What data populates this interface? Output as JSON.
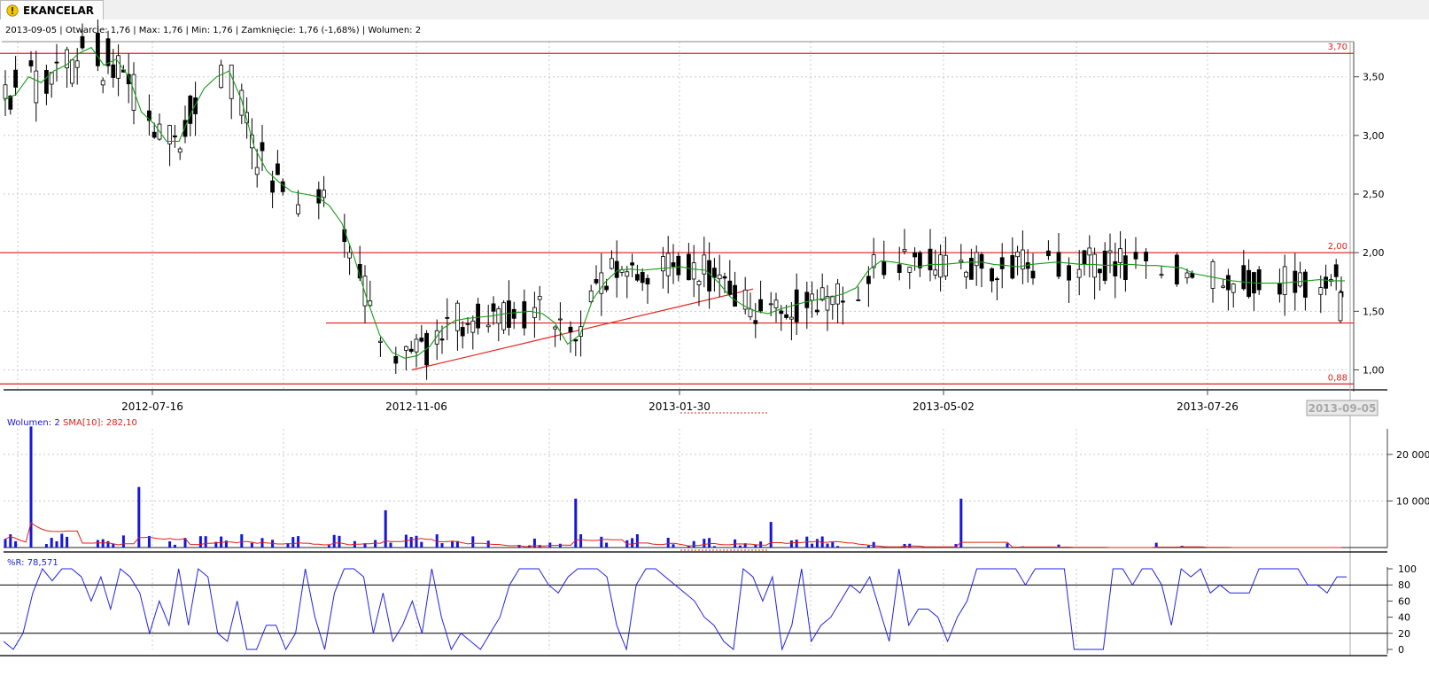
{
  "app": {
    "tab_label": "EKANCELAR",
    "tab_icon": "warning-icon"
  },
  "colors": {
    "candle": "#000000",
    "sma_price": "#1a9a1a",
    "support_lines": "#e0201a",
    "volume": "#1515dd",
    "volume_sma": "#e0201a",
    "williams_r": "#2222dd",
    "grid": "#c8c8c8"
  },
  "chart_data": [
    {
      "type": "candlestick",
      "panel": "price",
      "info": "2013-09-05 | Otwarcie: 1,76 | Max: 1,76 | Min: 1,76 | Zamknięcie: 1,76 (-1,68%)  | Wolumen: 2",
      "ylim": [
        0.83,
        3.8
      ],
      "yticks": [
        "3,50",
        "3,00",
        "2,50",
        "2,00",
        "1,50",
        "1,00"
      ],
      "ytick_values": [
        3.5,
        3.0,
        2.5,
        2.0,
        1.5,
        1.0
      ],
      "xticks": [
        "2012-07-16",
        "2012-11-06",
        "2013-01-30",
        "2013-05-02",
        "2013-07-26"
      ],
      "current_date_label": "2013-09-05",
      "horizontal_levels": [
        {
          "value": 3.7,
          "label": "3,70"
        },
        {
          "value": 2.0,
          "label": "2,00"
        },
        {
          "value": 1.4,
          "label": ""
        },
        {
          "value": 0.88,
          "label": "0,88"
        }
      ],
      "trendline": [
        [
          0.86,
          1.0
        ],
        [
          1.56,
          1.69
        ]
      ],
      "last_price": 1.76,
      "sma_line": [
        [
          3.3,
          3.35
        ],
        [
          3.5,
          3.45
        ],
        [
          3.55,
          3.6
        ],
        [
          3.7,
          3.75
        ],
        [
          3.6,
          3.65
        ],
        [
          3.5,
          3.2
        ],
        [
          3.1,
          2.95
        ],
        [
          2.95,
          3.2
        ],
        [
          3.4,
          3.5
        ],
        [
          3.55,
          3.3
        ],
        [
          2.9,
          2.7
        ],
        [
          2.6,
          2.52
        ],
        [
          2.5,
          2.48
        ],
        [
          2.4,
          2.25
        ],
        [
          1.95,
          1.6
        ],
        [
          1.3,
          1.15
        ],
        [
          1.1,
          1.12
        ],
        [
          1.2,
          1.35
        ],
        [
          1.42,
          1.44
        ],
        [
          1.45,
          1.46
        ],
        [
          1.48,
          1.49
        ],
        [
          1.5,
          1.48
        ],
        [
          1.4,
          1.22
        ],
        [
          1.3,
          1.6
        ],
        [
          1.75,
          1.85
        ],
        [
          1.86,
          1.85
        ],
        [
          1.86,
          1.87
        ],
        [
          1.88,
          1.86
        ],
        [
          1.85,
          1.75
        ],
        [
          1.62,
          1.55
        ],
        [
          1.5,
          1.48
        ],
        [
          1.52,
          1.55
        ],
        [
          1.58,
          1.6
        ],
        [
          1.62,
          1.65
        ],
        [
          1.7,
          1.85
        ],
        [
          1.93,
          1.92
        ],
        [
          1.9,
          1.88
        ],
        [
          1.9,
          1.9
        ],
        [
          1.91,
          1.92
        ],
        [
          1.92,
          1.9
        ],
        [
          1.89,
          1.88
        ],
        [
          1.9,
          1.91
        ],
        [
          1.92,
          1.91
        ],
        [
          1.9,
          1.9
        ],
        [
          1.89,
          1.9
        ],
        [
          1.9,
          1.89
        ],
        [
          1.89,
          1.88
        ],
        [
          1.87,
          1.82
        ],
        [
          1.8,
          1.78
        ],
        [
          1.76,
          1.75
        ],
        [
          1.74,
          1.74
        ],
        [
          1.74,
          1.75
        ],
        [
          1.76,
          1.77
        ],
        [
          1.76,
          1.76
        ]
      ]
    },
    {
      "type": "bar",
      "panel": "volume",
      "label": "Wolumen: 2",
      "sma_label": "SMA[10]: 282,10",
      "yticks": [
        "20 000",
        "10 000"
      ],
      "ytick_values": [
        20000,
        10000
      ],
      "ylim": [
        0,
        25500
      ],
      "peaks": [
        26000,
        13000,
        8000,
        10500,
        5500,
        10500,
        6000
      ]
    },
    {
      "type": "line",
      "panel": "williams_r",
      "label": "%R: 78,571",
      "yticks": [
        "100",
        "80",
        "60",
        "40",
        "20",
        "0"
      ],
      "ytick_values": [
        100,
        80,
        60,
        40,
        20,
        0
      ],
      "ylim": [
        0,
        100
      ],
      "reference_levels": [
        80,
        20
      ],
      "values": [
        10,
        0,
        20,
        70,
        100,
        85,
        100,
        100,
        90,
        60,
        90,
        50,
        100,
        90,
        70,
        20,
        60,
        30,
        100,
        30,
        100,
        90,
        20,
        10,
        60,
        0,
        0,
        30,
        30,
        0,
        20,
        100,
        40,
        0,
        70,
        100,
        100,
        90,
        20,
        70,
        10,
        30,
        60,
        20,
        100,
        40,
        0,
        20,
        10,
        0,
        20,
        40,
        80,
        100,
        100,
        100,
        80,
        70,
        90,
        100,
        100,
        100,
        90,
        30,
        0,
        80,
        100,
        100,
        90,
        80,
        70,
        60,
        40,
        30,
        10,
        0,
        100,
        90,
        60,
        90,
        0,
        30,
        100,
        10,
        30,
        40,
        60,
        80,
        70,
        90,
        50,
        10,
        100,
        30,
        50,
        50,
        40,
        10,
        40,
        60,
        100,
        100,
        100,
        100,
        100,
        80,
        100,
        100,
        100,
        100,
        0,
        0,
        0,
        0,
        100,
        100,
        80,
        100,
        100,
        80,
        30,
        100,
        90,
        100,
        70,
        80,
        70,
        70,
        70,
        100,
        100,
        100,
        100,
        100,
        80,
        80,
        70,
        90,
        90
      ]
    }
  ]
}
